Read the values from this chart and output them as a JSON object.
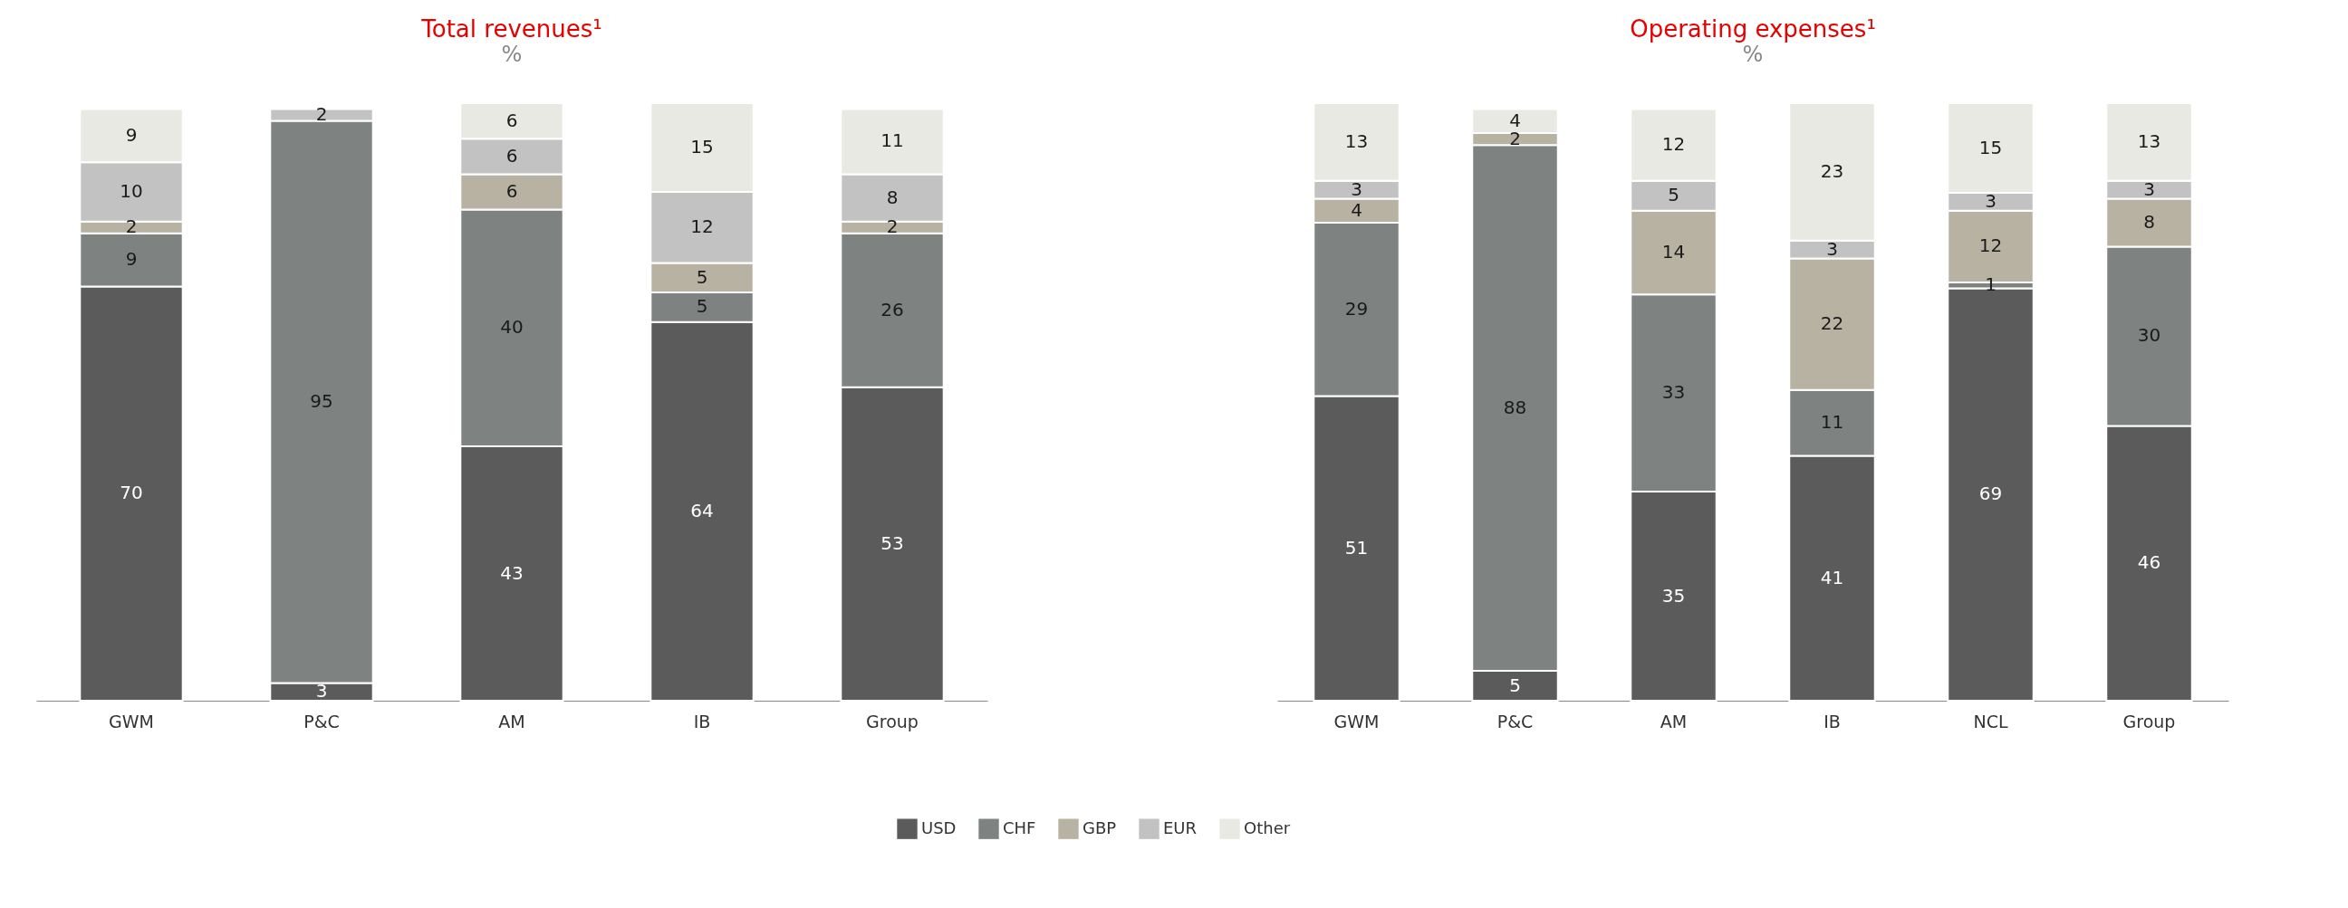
{
  "chart_data": [
    {
      "type": "bar",
      "title": "Total revenues¹",
      "subtitle": "%",
      "stacked": true,
      "data_labels": true,
      "legend": "bottom",
      "grid": false,
      "categories": [
        "GWM",
        "P&C",
        "AM",
        "IB",
        "Group"
      ],
      "series": [
        {
          "name": "USD",
          "color": "#5a5b5a",
          "values": [
            70,
            3,
            43,
            64,
            53
          ]
        },
        {
          "name": "CHF",
          "color": "#7e8280",
          "values": [
            9,
            95,
            40,
            5,
            26
          ]
        },
        {
          "name": "GBP",
          "color": "#b8b2a2",
          "values": [
            2,
            null,
            6,
            5,
            2
          ]
        },
        {
          "name": "EUR",
          "color": "#c2c2c2",
          "values": [
            10,
            2,
            6,
            12,
            8
          ]
        },
        {
          "name": "Other",
          "color": "#e9e9e4",
          "values": [
            9,
            null,
            6,
            15,
            11
          ]
        }
      ]
    },
    {
      "type": "bar",
      "title": "Operating expenses¹",
      "subtitle": "%",
      "stacked": true,
      "data_labels": true,
      "legend": "bottom",
      "grid": false,
      "categories": [
        "GWM",
        "P&C",
        "AM",
        "IB",
        "NCL",
        "Group"
      ],
      "series": [
        {
          "name": "USD",
          "color": "#5a5b5a",
          "values": [
            51,
            5,
            35,
            41,
            69,
            46
          ]
        },
        {
          "name": "CHF",
          "color": "#7e8280",
          "values": [
            29,
            88,
            33,
            11,
            1,
            30
          ]
        },
        {
          "name": "GBP",
          "color": "#b8b2a2",
          "values": [
            4,
            2,
            14,
            22,
            12,
            8
          ]
        },
        {
          "name": "EUR",
          "color": "#c2c2c2",
          "values": [
            3,
            null,
            5,
            3,
            3,
            3
          ]
        },
        {
          "name": "Other",
          "color": "#e9e9e4",
          "values": [
            13,
            4,
            12,
            23,
            15,
            13
          ]
        }
      ]
    }
  ]
}
